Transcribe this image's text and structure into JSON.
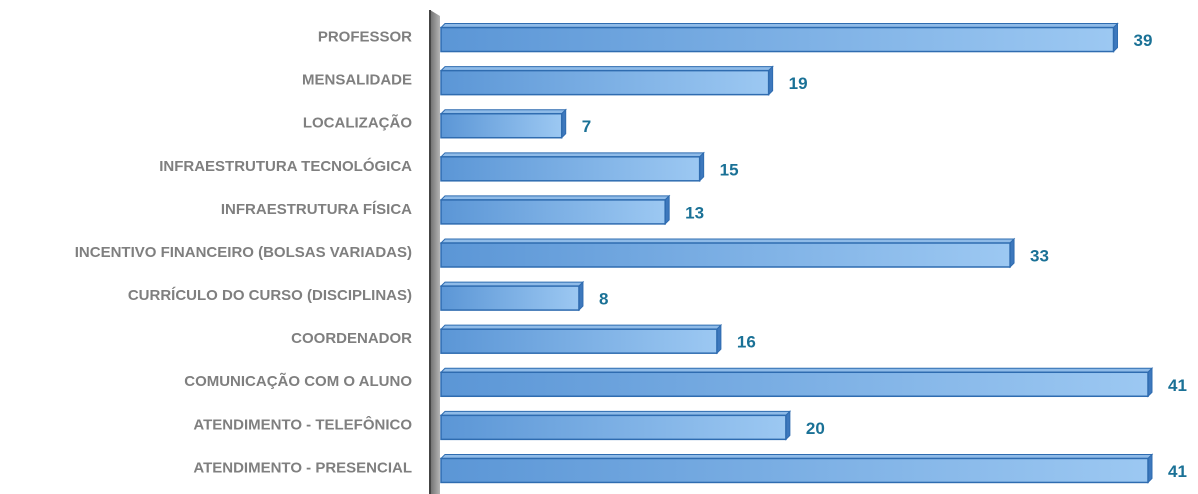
{
  "chart_data": {
    "type": "bar",
    "orientation": "horizontal",
    "categories": [
      "PROFESSOR",
      "MENSALIDADE",
      "LOCALIZAÇÃO",
      "INFRAESTRUTURA TECNOLÓGICA",
      "INFRAESTRUTURA FÍSICA",
      "INCENTIVO FINANCEIRO (BOLSAS VARIADAS)",
      "CURRÍCULO DO CURSO (DISCIPLINAS)",
      "COORDENADOR",
      "COMUNICAÇÃO COM O ALUNO",
      "ATENDIMENTO - TELEFÔNICO",
      "ATENDIMENTO - PRESENCIAL"
    ],
    "values": [
      39,
      19,
      7,
      15,
      13,
      33,
      8,
      16,
      41,
      20,
      41
    ],
    "color": "#5b9bd5",
    "xlim": [
      0,
      41
    ]
  }
}
